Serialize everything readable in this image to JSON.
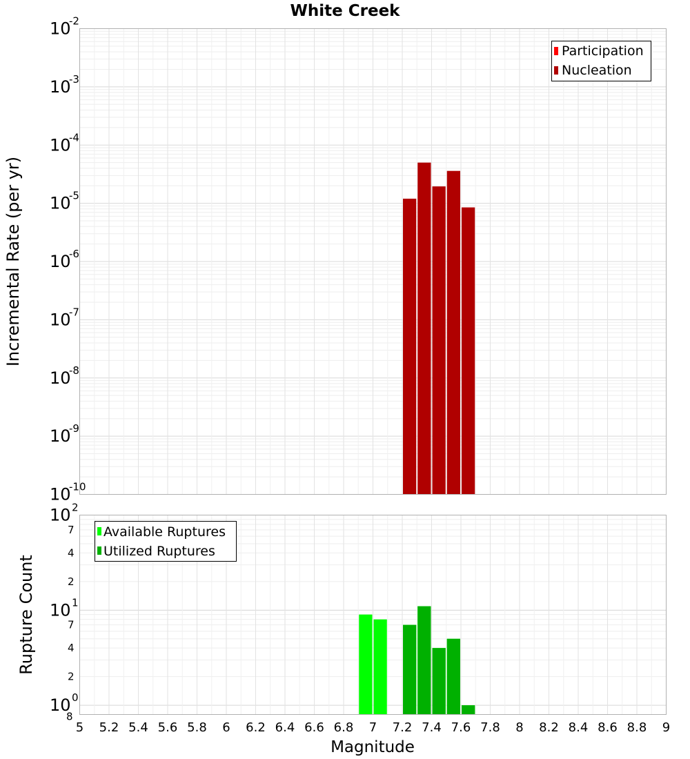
{
  "chart_data": [
    {
      "type": "bar",
      "title": "White Creek",
      "xlabel": "",
      "ylabel": "Incremental Rate (per yr)",
      "xlim": [
        5,
        9
      ],
      "yscale": "log",
      "ylim": [
        1e-10,
        0.01
      ],
      "ytick_bases": [
        "10",
        "10",
        "10",
        "10",
        "10",
        "10",
        "10",
        "10",
        "10"
      ],
      "ytick_exponents": [
        "-2",
        "-3",
        "-4",
        "-5",
        "-6",
        "-7",
        "-8",
        "-9",
        "-10"
      ],
      "legend": {
        "placement": "top-right",
        "entries": [
          {
            "label": "Participation",
            "color": "#ff0000"
          },
          {
            "label": "Nucleation",
            "color": "#b00000"
          }
        ]
      },
      "bar_width": 0.1,
      "series": [
        {
          "name": "Participation",
          "color": "#ff0000",
          "x": [],
          "values": []
        },
        {
          "name": "Nucleation",
          "color": "#b00000",
          "x": [
            7.25,
            7.35,
            7.45,
            7.55,
            7.65
          ],
          "values": [
            1.2e-05,
            5e-05,
            1.95e-05,
            3.6e-05,
            8.5e-06
          ]
        }
      ]
    },
    {
      "type": "bar",
      "title": "",
      "xlabel": "Magnitude",
      "ylabel": "Rupture Count",
      "xlim": [
        5,
        9
      ],
      "yscale": "log",
      "ylim": [
        0.8,
        100
      ],
      "ytick_bases": [
        "10",
        "10",
        "10"
      ],
      "ytick_exponents": [
        "2",
        "1",
        "0"
      ],
      "minor_tick_labels": [
        "7",
        "4",
        "2",
        "7",
        "4",
        "2",
        "8"
      ],
      "x_tick_labels": [
        "5",
        "5.2",
        "5.4",
        "5.6",
        "5.8",
        "6",
        "6.2",
        "6.4",
        "6.6",
        "6.8",
        "7",
        "7.2",
        "7.4",
        "7.6",
        "7.8",
        "8",
        "8.2",
        "8.4",
        "8.6",
        "8.8",
        "9"
      ],
      "legend": {
        "placement": "top-left",
        "entries": [
          {
            "label": "Available Ruptures",
            "color": "#00ff00"
          },
          {
            "label": "Utilized Ruptures",
            "color": "#00b000"
          }
        ]
      },
      "bar_width": 0.1,
      "series": [
        {
          "name": "Available Ruptures",
          "color": "#00ff00",
          "x": [
            6.95,
            7.05,
            7.25,
            7.35,
            7.45,
            7.55,
            7.65
          ],
          "values": [
            9,
            8,
            7,
            11,
            4,
            5,
            1
          ]
        },
        {
          "name": "Utilized Ruptures",
          "color": "#00b000",
          "x": [
            7.25,
            7.35,
            7.45,
            7.55,
            7.65
          ],
          "values": [
            7,
            11,
            4,
            5,
            1
          ]
        }
      ]
    }
  ]
}
